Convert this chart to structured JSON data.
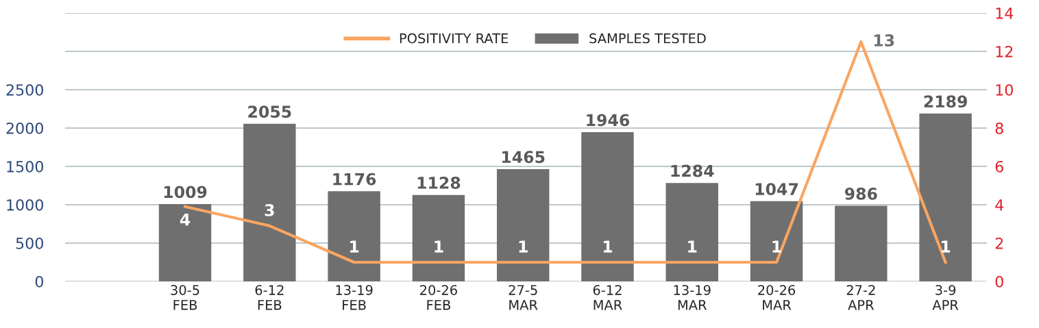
{
  "chart_data": {
    "type": "bar",
    "categories": [
      null,
      "30-5\nFEB",
      "6-12\nFEB",
      "13-19\nFEB",
      "20-26\nFEB",
      "27-5\nMAR",
      "6-12\nMAR",
      "13-19\nMAR",
      "20-26\nMAR",
      "27-2\nAPR",
      "3-9\nAPR"
    ],
    "series": [
      {
        "name": "SAMPLES TESTED",
        "color": "#6f6f6f",
        "values": [
          null,
          1009,
          2055,
          1176,
          1128,
          1465,
          1946,
          1284,
          1047,
          986,
          2189
        ]
      },
      {
        "name": "POSITIVITY RATE",
        "type": "line",
        "axis": "y2",
        "color": "#f9a561",
        "values": [
          null,
          3.9,
          2.9,
          1.0,
          1.0,
          1.0,
          1.0,
          1.0,
          1.0,
          12.5,
          1.0
        ],
        "value_labels": [
          null,
          "4",
          "3",
          "1",
          "1",
          "1",
          "1",
          "1",
          "1",
          "13",
          "1"
        ]
      }
    ],
    "data_labels": true,
    "ylim": [
      0,
      3500
    ],
    "yticks": [
      0,
      500,
      1000,
      1500,
      2000,
      2500,
      {
        "value": 3000,
        "label": null
      },
      {
        "value": 3500,
        "label": null
      }
    ],
    "y2lim": [
      0,
      14
    ],
    "y2ticks": [
      0,
      2,
      4,
      6,
      8,
      10,
      12,
      14
    ],
    "grid": "y",
    "legend": "top",
    "marker": "none",
    "line_style": "solid"
  }
}
